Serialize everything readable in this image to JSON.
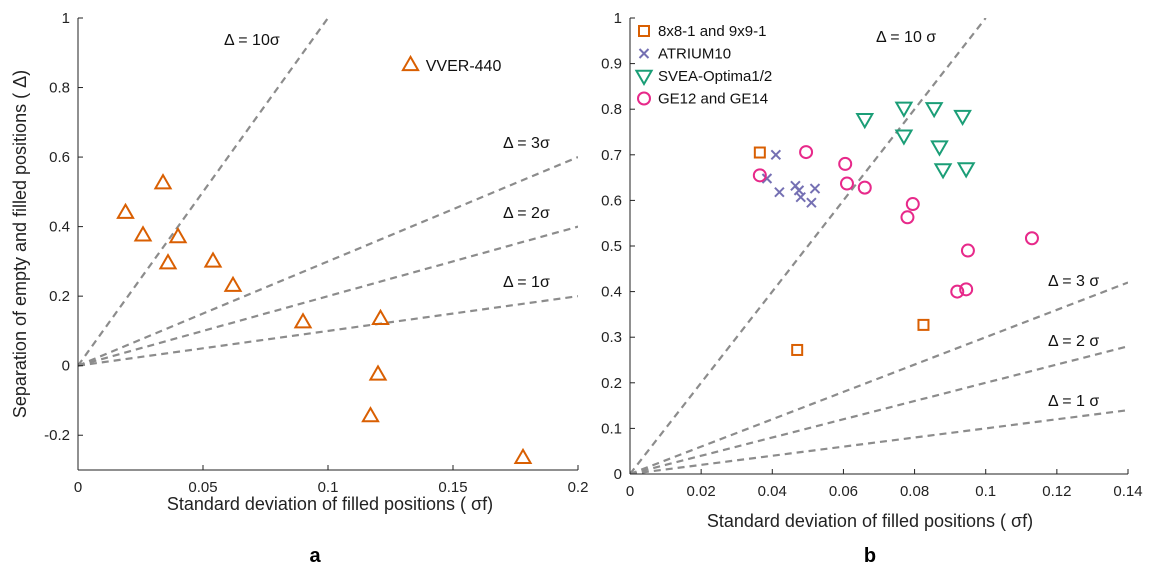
{
  "chart_data": [
    {
      "type": "scatter",
      "panel_label": "a",
      "xlabel": "Standard deviation of filled positions ( σf)",
      "ylabel": "Separation of empty and filled positions ( Δ)",
      "xlim": [
        0,
        0.2
      ],
      "ylim": [
        -0.3,
        1
      ],
      "xticks": [
        0,
        0.05,
        0.1,
        0.15,
        0.2
      ],
      "xtick_labels": [
        "0",
        "0.05",
        "0.1",
        "0.15",
        "0.2"
      ],
      "yticks": [
        -0.2,
        0,
        0.2,
        0.4,
        0.6,
        0.8,
        1
      ],
      "ytick_labels": [
        "-0.2",
        "0",
        "0.2",
        "0.4",
        "0.6",
        "0.8",
        "1"
      ],
      "grid": false,
      "series": [
        {
          "marker": "triangle-up",
          "color": "#d95f02",
          "points": [
            [
              0.019,
              0.44
            ],
            [
              0.026,
              0.375
            ],
            [
              0.034,
              0.525
            ],
            [
              0.036,
              0.295
            ],
            [
              0.04,
              0.37
            ],
            [
              0.054,
              0.3
            ],
            [
              0.062,
              0.23
            ],
            [
              0.09,
              0.125
            ],
            [
              0.117,
              -0.145
            ],
            [
              0.12,
              -0.025
            ],
            [
              0.121,
              0.135
            ],
            [
              0.178,
              -0.265
            ],
            [
              0.133,
              0.865
            ]
          ]
        }
      ],
      "reference_lines": [
        {
          "label": "Δ = 10σ",
          "slope": 10
        },
        {
          "label": "Δ = 3σ",
          "slope": 3
        },
        {
          "label": "Δ = 2σ",
          "slope": 2
        },
        {
          "label": "Δ = 1σ",
          "slope": 1
        }
      ],
      "annotations": [
        "VVER-440"
      ]
    },
    {
      "type": "scatter",
      "panel_label": "b",
      "xlabel": "Standard deviation of filled positions ( σf)",
      "ylabel": "",
      "xlim": [
        0,
        0.14
      ],
      "ylim": [
        0,
        1
      ],
      "xticks": [
        0,
        0.02,
        0.04,
        0.06,
        0.08,
        0.1,
        0.12,
        0.14
      ],
      "xtick_labels": [
        "0",
        "0.02",
        "0.04",
        "0.06",
        "0.08",
        "0.1",
        "0.12",
        "0.14"
      ],
      "yticks": [
        0,
        0.1,
        0.2,
        0.3,
        0.4,
        0.5,
        0.6,
        0.7,
        0.8,
        0.9,
        1
      ],
      "ytick_labels": [
        "0",
        "0.1",
        "0.2",
        "0.3",
        "0.4",
        "0.5",
        "0.6",
        "0.7",
        "0.8",
        "0.9",
        "1"
      ],
      "grid": false,
      "legend_position": "top-left",
      "series": [
        {
          "name": "8x8-1 and 9x9-1",
          "marker": "square",
          "color": "#d95f02",
          "points": [
            [
              0.0365,
              0.705
            ],
            [
              0.047,
              0.272
            ],
            [
              0.0825,
              0.327
            ]
          ]
        },
        {
          "name": "ATRIUM10",
          "marker": "x",
          "color": "#7570b3",
          "points": [
            [
              0.0385,
              0.648
            ],
            [
              0.041,
              0.7
            ],
            [
              0.042,
              0.618
            ],
            [
              0.0465,
              0.632
            ],
            [
              0.0475,
              0.622
            ],
            [
              0.048,
              0.607
            ],
            [
              0.051,
              0.595
            ],
            [
              0.052,
              0.626
            ]
          ]
        },
        {
          "name": "SVEA-Optima1/2",
          "marker": "triangle-down",
          "color": "#1b9e77",
          "points": [
            [
              0.066,
              0.778
            ],
            [
              0.077,
              0.803
            ],
            [
              0.077,
              0.742
            ],
            [
              0.0855,
              0.802
            ],
            [
              0.087,
              0.718
            ],
            [
              0.088,
              0.668
            ],
            [
              0.0935,
              0.785
            ],
            [
              0.0945,
              0.67
            ]
          ]
        },
        {
          "name": "GE12 and GE14",
          "marker": "circle",
          "color": "#e7298a",
          "points": [
            [
              0.0365,
              0.655
            ],
            [
              0.0495,
              0.706
            ],
            [
              0.0605,
              0.68
            ],
            [
              0.061,
              0.637
            ],
            [
              0.066,
              0.628
            ],
            [
              0.078,
              0.563
            ],
            [
              0.0795,
              0.592
            ],
            [
              0.092,
              0.4
            ],
            [
              0.0945,
              0.405
            ],
            [
              0.095,
              0.49
            ],
            [
              0.113,
              0.517
            ]
          ]
        }
      ],
      "reference_lines": [
        {
          "label": "Δ = 10 σ",
          "slope": 10
        },
        {
          "label": "Δ = 3 σ",
          "slope": 3
        },
        {
          "label": "Δ = 2 σ",
          "slope": 2
        },
        {
          "label": "Δ = 1 σ",
          "slope": 1
        }
      ]
    }
  ],
  "colors": {
    "reference_line": "#8c8c8c",
    "axis": "#222222"
  }
}
